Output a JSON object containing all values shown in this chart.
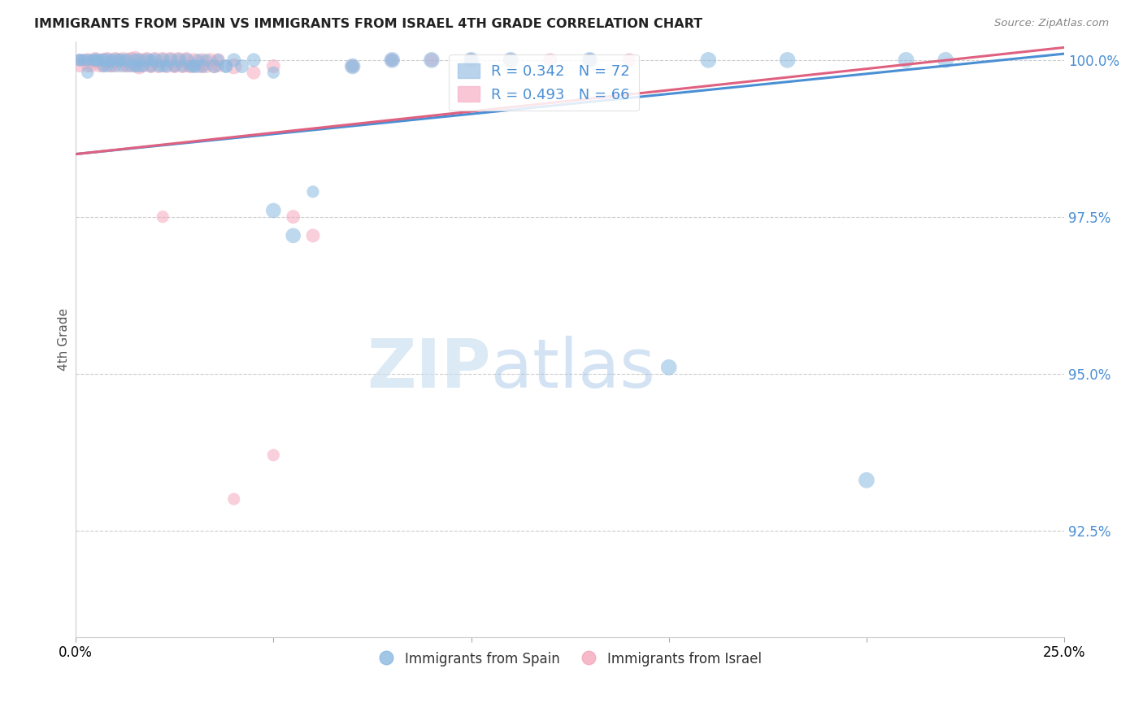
{
  "title": "IMMIGRANTS FROM SPAIN VS IMMIGRANTS FROM ISRAEL 4TH GRADE CORRELATION CHART",
  "source": "Source: ZipAtlas.com",
  "ylabel": "4th Grade",
  "ytick_values": [
    0.925,
    0.95,
    0.975,
    1.0
  ],
  "xmin": 0.0,
  "xmax": 0.25,
  "ymin": 0.908,
  "ymax": 1.003,
  "legend_blue_label": "R = 0.342   N = 72",
  "legend_pink_label": "R = 0.493   N = 66",
  "blue_color": "#8ab8e0",
  "pink_color": "#f4a8bc",
  "blue_line_color": "#4a8fd4",
  "pink_line_color": "#e06080",
  "watermark_zip": "ZIP",
  "watermark_atlas": "atlas",
  "blue_line_x0": 0.0,
  "blue_line_y0": 0.985,
  "blue_line_x1": 0.25,
  "blue_line_y1": 1.001,
  "pink_line_x0": 0.0,
  "pink_line_y0": 0.985,
  "pink_line_x1": 0.25,
  "pink_line_y1": 1.002,
  "spain_x": [
    0.001,
    0.002,
    0.003,
    0.004,
    0.005,
    0.006,
    0.007,
    0.007,
    0.008,
    0.009,
    0.01,
    0.01,
    0.011,
    0.012,
    0.013,
    0.014,
    0.015,
    0.015,
    0.016,
    0.017,
    0.018,
    0.019,
    0.02,
    0.021,
    0.022,
    0.023,
    0.024,
    0.025,
    0.026,
    0.027,
    0.028,
    0.029,
    0.03,
    0.031,
    0.032,
    0.033,
    0.035,
    0.036,
    0.038,
    0.04,
    0.042,
    0.045,
    0.05,
    0.055,
    0.07,
    0.08,
    0.09,
    0.1,
    0.11,
    0.13,
    0.15,
    0.16,
    0.18,
    0.2,
    0.21,
    0.22,
    0.001,
    0.003,
    0.005,
    0.008,
    0.012,
    0.016,
    0.019,
    0.022,
    0.03,
    0.038,
    0.05,
    0.06,
    0.07,
    0.08,
    0.1,
    0.13
  ],
  "spain_y": [
    1.0,
    1.0,
    1.0,
    1.0,
    1.0,
    1.0,
    1.0,
    0.999,
    1.0,
    1.0,
    1.0,
    0.999,
    1.0,
    0.999,
    1.0,
    0.999,
    1.0,
    0.999,
    1.0,
    0.999,
    1.0,
    0.999,
    1.0,
    0.999,
    1.0,
    0.999,
    1.0,
    0.999,
    1.0,
    0.999,
    1.0,
    0.999,
    0.999,
    1.0,
    0.999,
    1.0,
    0.999,
    1.0,
    0.999,
    1.0,
    0.999,
    1.0,
    0.976,
    0.972,
    0.999,
    1.0,
    1.0,
    1.0,
    1.0,
    1.0,
    0.951,
    1.0,
    1.0,
    0.933,
    1.0,
    1.0,
    1.0,
    0.998,
    1.0,
    0.999,
    1.0,
    0.999,
    1.0,
    0.999,
    0.999,
    0.999,
    0.998,
    0.979,
    0.999,
    1.0,
    1.0,
    1.0
  ],
  "spain_sizes": [
    120,
    120,
    120,
    120,
    150,
    120,
    150,
    120,
    150,
    120,
    150,
    120,
    150,
    120,
    150,
    120,
    150,
    120,
    150,
    120,
    150,
    120,
    150,
    120,
    150,
    120,
    150,
    120,
    150,
    120,
    150,
    120,
    150,
    120,
    150,
    120,
    150,
    120,
    150,
    150,
    150,
    150,
    180,
    180,
    200,
    200,
    200,
    200,
    200,
    200,
    200,
    200,
    200,
    200,
    200,
    200,
    120,
    120,
    120,
    120,
    120,
    120,
    120,
    120,
    120,
    120,
    120,
    120,
    120,
    120,
    120,
    120
  ],
  "israel_x": [
    0.001,
    0.002,
    0.003,
    0.004,
    0.005,
    0.006,
    0.007,
    0.008,
    0.009,
    0.01,
    0.011,
    0.012,
    0.013,
    0.014,
    0.015,
    0.016,
    0.017,
    0.018,
    0.019,
    0.02,
    0.021,
    0.022,
    0.023,
    0.024,
    0.025,
    0.026,
    0.027,
    0.028,
    0.029,
    0.03,
    0.031,
    0.032,
    0.033,
    0.034,
    0.035,
    0.036,
    0.04,
    0.045,
    0.05,
    0.055,
    0.06,
    0.07,
    0.08,
    0.09,
    0.1,
    0.11,
    0.12,
    0.13,
    0.14,
    0.001,
    0.003,
    0.005,
    0.007,
    0.009,
    0.011,
    0.013,
    0.015,
    0.017,
    0.019,
    0.022,
    0.025,
    0.028,
    0.032,
    0.036,
    0.04,
    0.05
  ],
  "israel_y": [
    1.0,
    1.0,
    1.0,
    0.999,
    1.0,
    0.999,
    1.0,
    1.0,
    0.999,
    1.0,
    0.999,
    1.0,
    0.999,
    1.0,
    1.0,
    0.999,
    1.0,
    1.0,
    0.999,
    1.0,
    0.999,
    1.0,
    0.999,
    1.0,
    0.999,
    1.0,
    0.999,
    1.0,
    0.999,
    1.0,
    0.999,
    1.0,
    0.999,
    1.0,
    0.999,
    1.0,
    0.999,
    0.998,
    0.999,
    0.975,
    0.972,
    0.999,
    1.0,
    1.0,
    1.0,
    1.0,
    1.0,
    1.0,
    1.0,
    0.999,
    0.999,
    1.0,
    0.999,
    0.999,
    1.0,
    0.999,
    0.999,
    0.999,
    0.999,
    0.975,
    0.999,
    0.999,
    0.999,
    0.999,
    0.93,
    0.937
  ],
  "israel_sizes": [
    120,
    120,
    150,
    120,
    200,
    120,
    150,
    200,
    120,
    200,
    120,
    200,
    120,
    200,
    250,
    200,
    150,
    200,
    150,
    200,
    150,
    200,
    150,
    200,
    150,
    200,
    150,
    200,
    150,
    150,
    150,
    150,
    150,
    150,
    150,
    150,
    200,
    150,
    150,
    150,
    150,
    150,
    150,
    150,
    150,
    150,
    150,
    150,
    150,
    120,
    120,
    120,
    120,
    120,
    120,
    120,
    120,
    120,
    120,
    120,
    120,
    120,
    120,
    120,
    120,
    120
  ]
}
